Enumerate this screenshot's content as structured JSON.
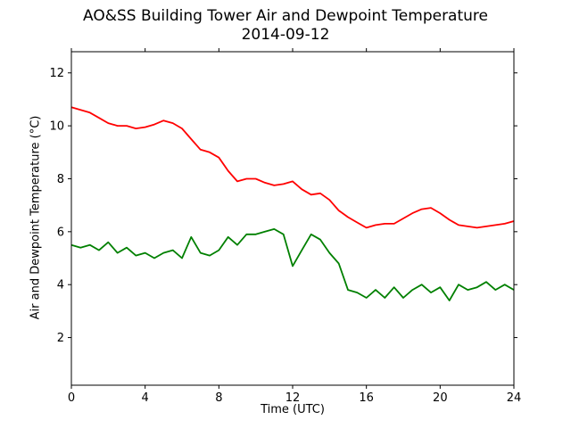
{
  "chart_data": {
    "type": "line",
    "title_lines": [
      "AO&SS Building Tower Air and Dewpoint Temperature",
      "2014-09-12"
    ],
    "xlabel": "Time (UTC)",
    "ylabel": "Air and Dewpoint Temperature (°C)",
    "xlim": [
      0,
      24
    ],
    "ylim": [
      0.2,
      12.8
    ],
    "x_ticks": [
      0,
      4,
      8,
      12,
      16,
      20,
      24
    ],
    "y_ticks": [
      2,
      4,
      6,
      8,
      10,
      12
    ],
    "grid": false,
    "legend": "none",
    "series": [
      {
        "color": "#ff0000",
        "x": [
          0,
          0.5,
          1,
          1.5,
          2,
          2.5,
          3,
          3.5,
          4,
          4.5,
          5,
          5.5,
          6,
          6.5,
          7,
          7.5,
          8,
          8.5,
          9,
          9.5,
          10,
          10.5,
          11,
          11.5,
          12,
          12.5,
          13,
          13.5,
          14,
          14.5,
          15,
          15.5,
          16,
          16.5,
          17,
          17.5,
          18,
          18.5,
          19,
          19.5,
          20,
          20.5,
          21,
          21.5,
          22,
          22.5,
          23,
          23.5,
          24
        ],
        "values": [
          10.7,
          10.6,
          10.5,
          10.3,
          10.1,
          10.0,
          10.0,
          9.9,
          9.95,
          10.05,
          10.2,
          10.1,
          9.9,
          9.5,
          9.1,
          9.0,
          8.8,
          8.3,
          7.9,
          8.0,
          8.0,
          7.85,
          7.75,
          7.8,
          7.9,
          7.6,
          7.4,
          7.45,
          7.2,
          6.8,
          6.55,
          6.35,
          6.15,
          6.25,
          6.3,
          6.3,
          6.5,
          6.7,
          6.85,
          6.9,
          6.7,
          6.45,
          6.25,
          6.2,
          6.15,
          6.2,
          6.25,
          6.3,
          6.4
        ]
      },
      {
        "color": "#008000",
        "x": [
          0,
          0.5,
          1,
          1.5,
          2,
          2.5,
          3,
          3.5,
          4,
          4.5,
          5,
          5.5,
          6,
          6.5,
          7,
          7.5,
          8,
          8.5,
          9,
          9.5,
          10,
          10.5,
          11,
          11.5,
          12,
          12.5,
          13,
          13.5,
          14,
          14.5,
          15,
          15.5,
          16,
          16.5,
          17,
          17.5,
          18,
          18.5,
          19,
          19.5,
          20,
          20.5,
          21,
          21.5,
          22,
          22.5,
          23,
          23.5,
          24
        ],
        "values": [
          5.5,
          5.4,
          5.5,
          5.3,
          5.6,
          5.2,
          5.4,
          5.1,
          5.2,
          5.0,
          5.2,
          5.3,
          5.0,
          5.8,
          5.2,
          5.1,
          5.3,
          5.8,
          5.5,
          5.9,
          5.9,
          6.0,
          6.1,
          5.9,
          4.7,
          5.3,
          5.9,
          5.7,
          5.2,
          4.8,
          3.8,
          3.7,
          3.5,
          3.8,
          3.5,
          3.9,
          3.5,
          3.8,
          4.0,
          3.7,
          3.9,
          3.4,
          4.0,
          3.8,
          3.9,
          4.1,
          3.8,
          4.0,
          3.8
        ]
      }
    ]
  }
}
